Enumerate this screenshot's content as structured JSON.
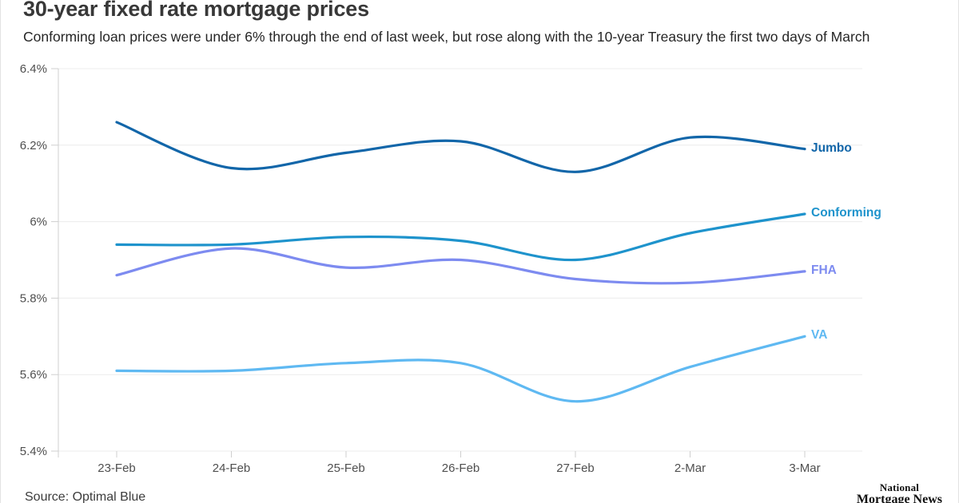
{
  "header": {
    "title": "30-year fixed rate mortgage prices",
    "subtitle": "Conforming loan prices were under 6% through the end of last week, but rose along with the 10-year Treasury the first two days of March"
  },
  "footer": {
    "source": "Source: Optimal Blue",
    "logo_line1": "National",
    "logo_line2": "Mortgage News"
  },
  "colors": {
    "grid": "#ececec",
    "axis": "#cfcfcf",
    "tick_text": "#4f4f4f",
    "title_text": "#383838",
    "subtitle_text": "#262626"
  },
  "chart_data": {
    "type": "line",
    "title": "30-year fixed rate mortgage prices",
    "categories": [
      "23-Feb",
      "24-Feb",
      "25-Feb",
      "26-Feb",
      "27-Feb",
      "2-Mar",
      "3-Mar"
    ],
    "series": [
      {
        "name": "Jumbo",
        "color": "#1266a9",
        "values": [
          6.26,
          6.14,
          6.18,
          6.21,
          6.13,
          6.22,
          6.19
        ]
      },
      {
        "name": "Conforming",
        "color": "#1e93cc",
        "values": [
          5.94,
          5.94,
          5.96,
          5.95,
          5.9,
          5.97,
          6.02
        ]
      },
      {
        "name": "FHA",
        "color": "#7d8bf0",
        "values": [
          5.86,
          5.93,
          5.88,
          5.9,
          5.85,
          5.84,
          5.87
        ]
      },
      {
        "name": "VA",
        "color": "#5fb9f2",
        "values": [
          5.61,
          5.61,
          5.63,
          5.63,
          5.53,
          5.62,
          5.7
        ]
      }
    ],
    "ylim": [
      5.4,
      6.4
    ],
    "ytick_labels": [
      "6.4%",
      "6.2%",
      "6%",
      "5.8%",
      "5.6%",
      "5.4%"
    ],
    "ytick_values": [
      6.4,
      6.2,
      6.0,
      5.8,
      5.6,
      5.4
    ],
    "xlabel": "",
    "ylabel": "",
    "grid": true,
    "legend_position": "labels-at-line-ends"
  }
}
